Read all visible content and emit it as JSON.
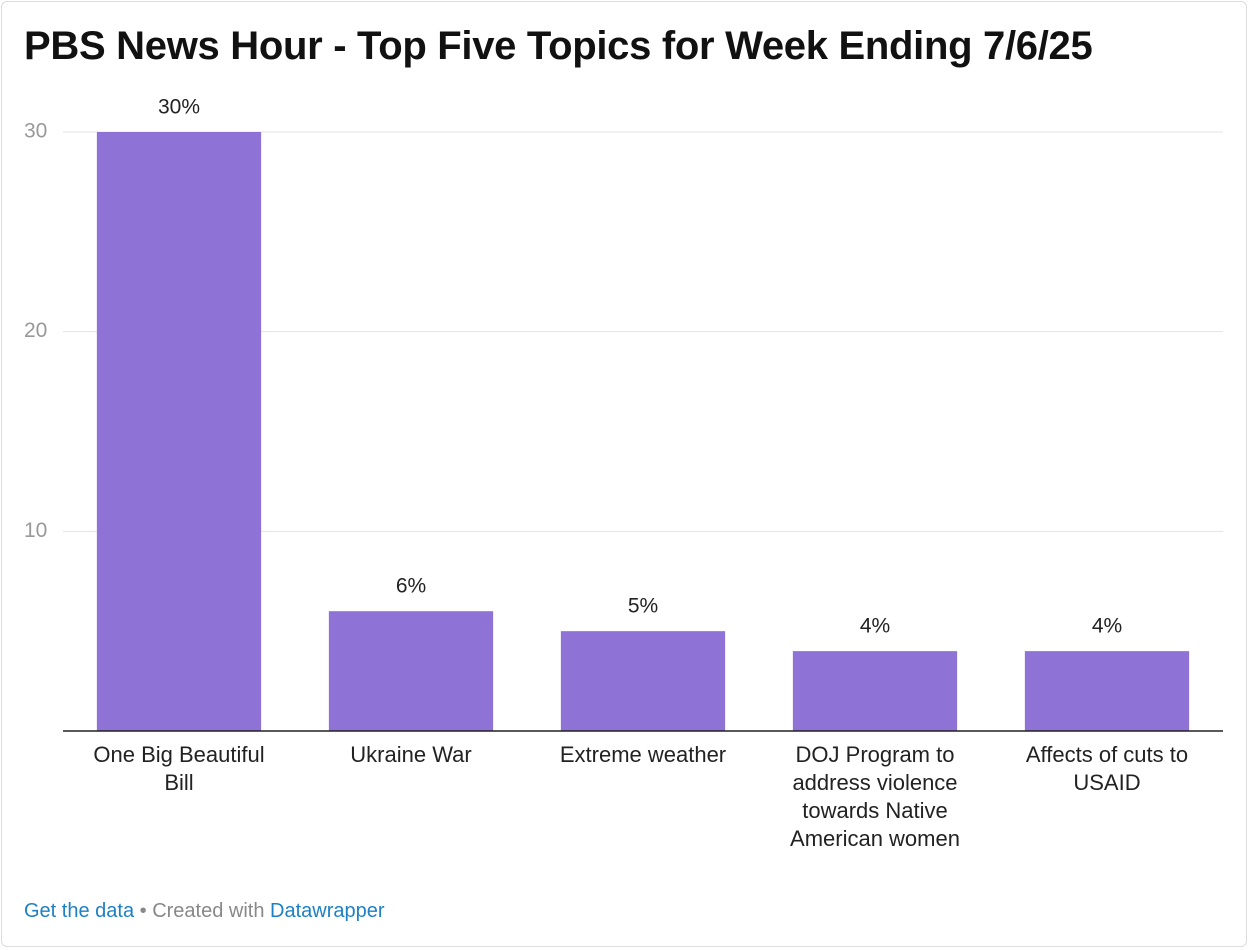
{
  "chart_data": {
    "type": "bar",
    "title": "PBS News Hour - Top Five Topics for Week Ending 7/6/25",
    "categories": [
      "One Big Beautiful Bill",
      "Ukraine War",
      "Extreme weather",
      "DOJ Program to address violence towards Native American women",
      "Affects of cuts to USAID"
    ],
    "values": [
      30,
      6,
      5,
      4,
      4
    ],
    "value_labels": [
      "30%",
      "6%",
      "5%",
      "4%",
      "4%"
    ],
    "color": "#8e72d6",
    "ylim": [
      0,
      30
    ],
    "yticks": [
      10,
      20,
      30
    ],
    "grid": true,
    "footer": {
      "link": "Get the data",
      "text": "• Created with",
      "credit": "Datawrapper"
    }
  }
}
